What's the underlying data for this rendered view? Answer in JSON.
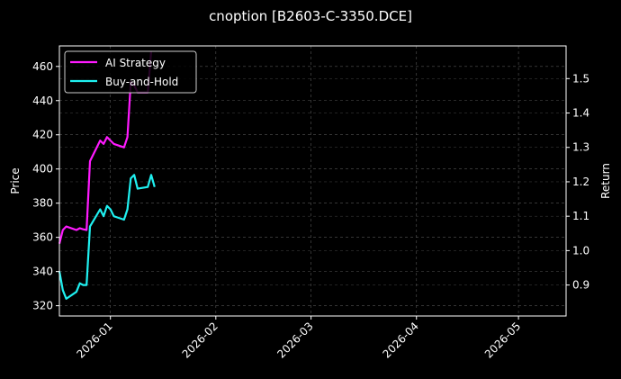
{
  "chart_data": {
    "type": "line",
    "title": "cnoption [B2603-C-3350.DCE]",
    "xlabel": "",
    "ylabel": "Price",
    "y2label": "Return",
    "ylim": [
      314,
      472
    ],
    "y2lim": [
      0.81,
      1.595
    ],
    "xlim": [
      "2025-12-17",
      "2026-05-15"
    ],
    "grid": true,
    "legend_position": "upper left",
    "x_ticks": [
      "2026-01",
      "2026-02",
      "2026-03",
      "2026-04",
      "2026-05"
    ],
    "y_ticks": [
      320,
      340,
      360,
      380,
      400,
      420,
      440,
      460
    ],
    "y2_ticks": [
      0.9,
      1.0,
      1.1,
      1.2,
      1.3,
      1.4,
      1.5
    ],
    "series": [
      {
        "name": "AI Strategy",
        "color": "#ff1aff",
        "axis": "right",
        "x": [
          "2025-12-17",
          "2025-12-18",
          "2025-12-19",
          "2025-12-22",
          "2025-12-23",
          "2025-12-24",
          "2025-12-25",
          "2025-12-26",
          "2025-12-29",
          "2025-12-30",
          "2025-12-31",
          "2026-01-01",
          "2026-01-02",
          "2026-01-05",
          "2026-01-06",
          "2026-01-07",
          "2026-01-08",
          "2026-01-09",
          "2026-01-12",
          "2026-01-13"
        ],
        "values": [
          1.02,
          1.06,
          1.07,
          1.06,
          1.065,
          1.062,
          1.06,
          1.26,
          1.32,
          1.31,
          1.33,
          1.32,
          1.31,
          1.3,
          1.33,
          1.49,
          1.48,
          1.46,
          1.46,
          1.58
        ]
      },
      {
        "name": "Buy-and-Hold",
        "color": "#1ff0f0",
        "axis": "right",
        "x": [
          "2025-12-17",
          "2025-12-18",
          "2025-12-19",
          "2025-12-22",
          "2025-12-23",
          "2025-12-24",
          "2025-12-25",
          "2025-12-26",
          "2025-12-29",
          "2025-12-30",
          "2025-12-31",
          "2026-01-01",
          "2026-01-02",
          "2026-01-05",
          "2026-01-06",
          "2026-01-07",
          "2026-01-08",
          "2026-01-09",
          "2026-01-12",
          "2026-01-13",
          "2026-01-14"
        ],
        "values": [
          0.94,
          0.885,
          0.86,
          0.88,
          0.905,
          0.9,
          0.9,
          1.07,
          1.12,
          1.1,
          1.13,
          1.12,
          1.1,
          1.09,
          1.12,
          1.21,
          1.22,
          1.18,
          1.185,
          1.22,
          1.185
        ]
      }
    ]
  }
}
